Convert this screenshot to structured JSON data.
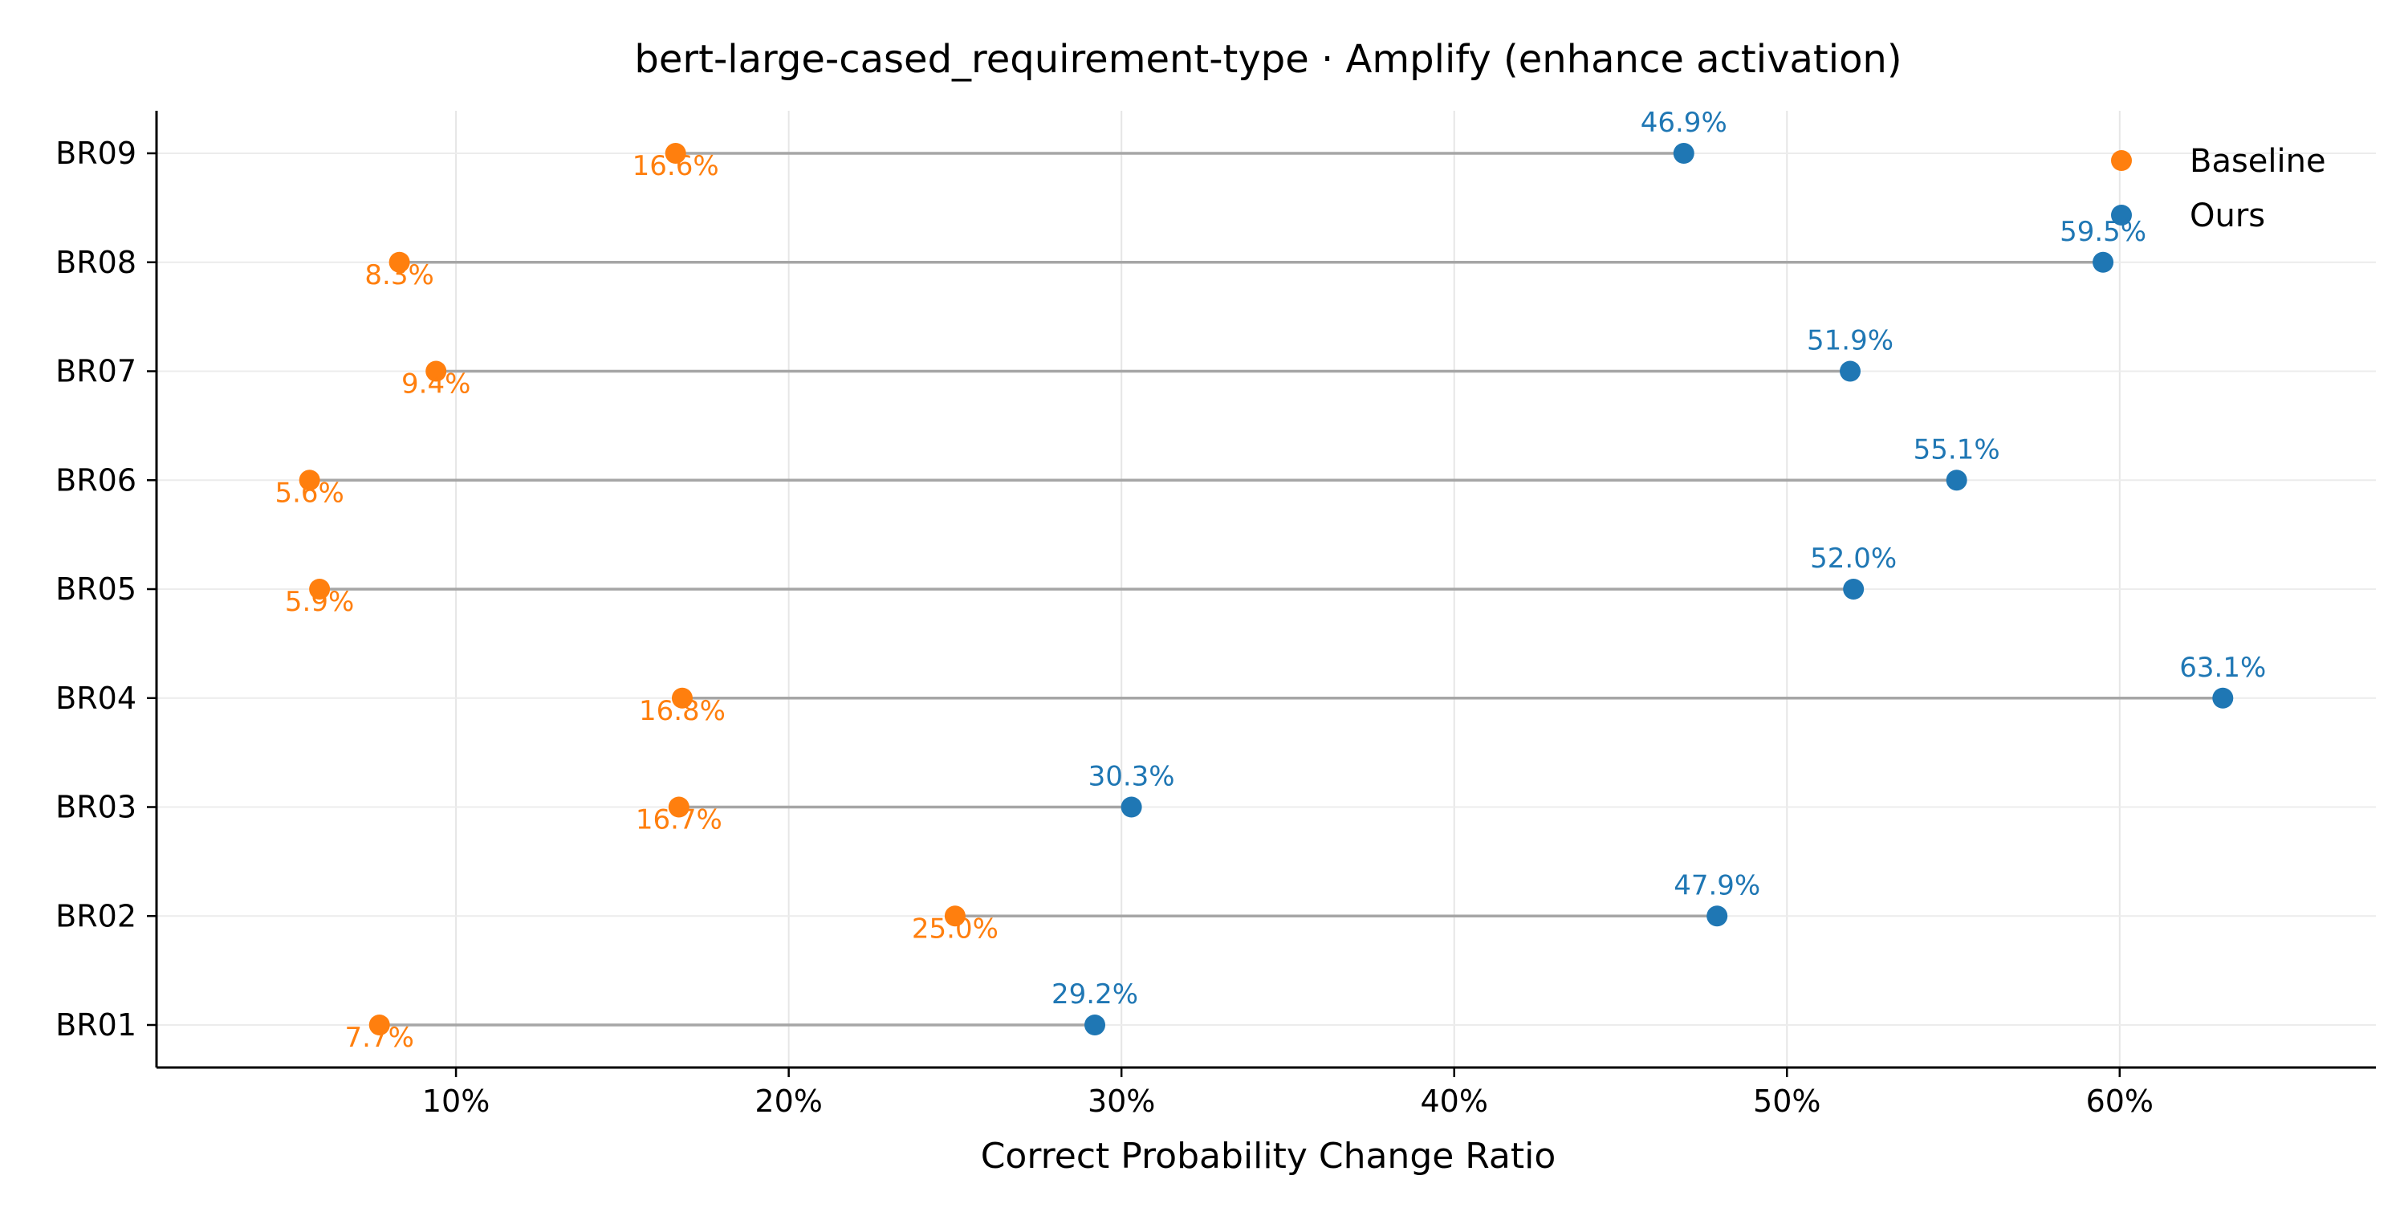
{
  "chart_data": {
    "type": "dumbbell",
    "title": "bert-large-cased_requirement-type · Amplify (enhance activation)",
    "xlabel": "Correct Probability Change Ratio",
    "ylabel": "",
    "xlim": [
      1.0,
      67.7
    ],
    "x_ticks": [
      10,
      20,
      30,
      40,
      50,
      60
    ],
    "x_tick_labels": [
      "10%",
      "20%",
      "30%",
      "40%",
      "50%",
      "60%"
    ],
    "grid": true,
    "legend_position": "top-right",
    "categories": [
      "BR01",
      "BR02",
      "BR03",
      "BR04",
      "BR05",
      "BR06",
      "BR07",
      "BR08",
      "BR09"
    ],
    "series": [
      {
        "name": "Baseline",
        "color": "#ff7f0e",
        "values": [
          7.7,
          25.0,
          16.7,
          16.8,
          5.9,
          5.6,
          9.4,
          8.3,
          16.6
        ],
        "labels": [
          "7.7%",
          "25.0%",
          "16.7%",
          "16.8%",
          "5.9%",
          "5.6%",
          "9.4%",
          "8.3%",
          "16.6%"
        ]
      },
      {
        "name": "Ours",
        "color": "#1f77b4",
        "values": [
          29.2,
          47.9,
          30.3,
          63.1,
          52.0,
          55.1,
          51.9,
          59.5,
          46.9
        ],
        "labels": [
          "29.2%",
          "47.9%",
          "30.3%",
          "63.1%",
          "52.0%",
          "55.1%",
          "51.9%",
          "59.5%",
          "46.9%"
        ]
      }
    ],
    "connector_color": "#a6a6a6"
  }
}
